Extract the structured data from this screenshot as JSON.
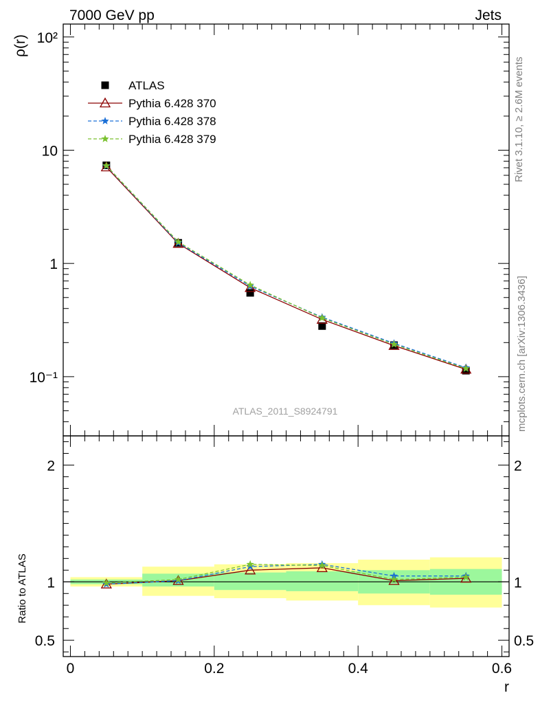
{
  "header": {
    "left_title": "7000 GeV pp",
    "right_title": "Jets"
  },
  "side_labels": {
    "rivet": "Rivet 3.1.10, ≥ 2.6M events",
    "mcplots": "mcplots.cern.ch [arXiv:1306.3436]"
  },
  "watermark": "ATLAS_2011_S8924791",
  "chart_data": [
    {
      "panel": "main",
      "type": "line",
      "ylabel": "ρ(r)",
      "xlabel": "",
      "log_y": true,
      "xlim": [
        -0.01,
        0.61
      ],
      "ylim": [
        0.03,
        130
      ],
      "y_tick_labels": [
        "10⁻¹",
        "1",
        "10",
        "10²"
      ],
      "legend_position": "top-left",
      "x": [
        0.05,
        0.15,
        0.25,
        0.35,
        0.45,
        0.55
      ],
      "series": [
        {
          "name": "ATLAS",
          "color": "#000000",
          "marker": "square",
          "values": [
            7.35,
            1.52,
            0.55,
            0.28,
            0.19,
            0.113
          ]
        },
        {
          "name": "Pythia 6.428 370",
          "color": "#8b0000",
          "marker": "open-triangle",
          "dash": "solid",
          "values": [
            7.1,
            1.5,
            0.61,
            0.32,
            0.188,
            0.116
          ]
        },
        {
          "name": "Pythia 6.428 378",
          "color": "#1a6fd6",
          "marker": "star",
          "dash": "dashed",
          "values": [
            7.25,
            1.52,
            0.63,
            0.335,
            0.197,
            0.12
          ]
        },
        {
          "name": "Pythia 6.428 379",
          "color": "#7ac12f",
          "marker": "star",
          "dash": "dashed",
          "values": [
            7.3,
            1.55,
            0.645,
            0.33,
            0.193,
            0.118
          ]
        }
      ]
    },
    {
      "panel": "ratio",
      "type": "line",
      "ylabel": "Ratio to ATLAS",
      "xlabel": "r",
      "xlim": [
        -0.01,
        0.61
      ],
      "ylim": [
        0.36,
        2.25
      ],
      "x_tick_labels": [
        "0",
        "0.2",
        "0.4",
        "0.6"
      ],
      "y_tick_labels": [
        "0.5",
        "1",
        "2"
      ],
      "x": [
        0.05,
        0.15,
        0.25,
        0.35,
        0.45,
        0.55
      ],
      "bands": {
        "bin_edges": [
          0.0,
          0.1,
          0.2,
          0.3,
          0.4,
          0.5,
          0.6
        ],
        "inner": [
          [
            0.98,
            1.02
          ],
          [
            0.96,
            1.07
          ],
          [
            0.93,
            1.08
          ],
          [
            0.92,
            1.09
          ],
          [
            0.9,
            1.1
          ],
          [
            0.89,
            1.11
          ]
        ],
        "outer": [
          [
            0.96,
            1.04
          ],
          [
            0.88,
            1.13
          ],
          [
            0.86,
            1.15
          ],
          [
            0.84,
            1.16
          ],
          [
            0.8,
            1.19
          ],
          [
            0.78,
            1.21
          ]
        ],
        "inner_color": "#9cf79c",
        "outer_color": "#ffff99"
      },
      "series": [
        {
          "name": "Pythia 6.428 370",
          "color": "#8b0000",
          "values": [
            0.98,
            1.01,
            1.1,
            1.12,
            1.01,
            1.03
          ]
        },
        {
          "name": "Pythia 6.428 378",
          "color": "#1a6fd6",
          "values": [
            0.98,
            1.01,
            1.13,
            1.15,
            1.05,
            1.05
          ]
        },
        {
          "name": "Pythia 6.428 379",
          "color": "#7ac12f",
          "values": [
            0.99,
            1.02,
            1.15,
            1.14,
            1.02,
            1.04
          ]
        }
      ]
    }
  ]
}
